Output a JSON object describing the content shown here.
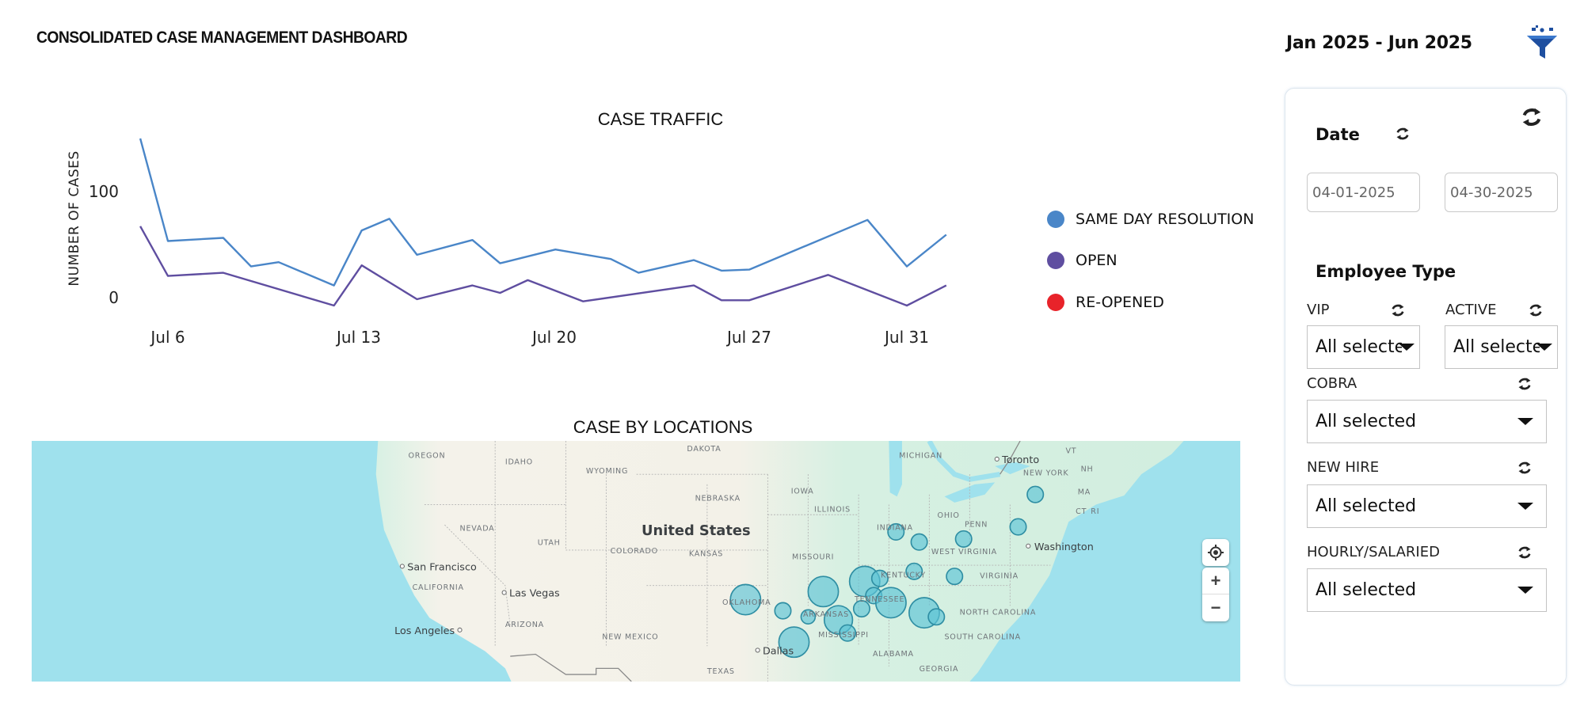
{
  "header": {
    "title": "CONSOLIDATED CASE MANAGEMENT DASHBOARD",
    "date_range": "Jan 2025 - Jun 2025",
    "filter_icon": "filter-funnel-icon"
  },
  "chart_data": {
    "type": "line",
    "title": "CASE TRAFFIC",
    "xlabel": "",
    "ylabel": "NUMBER OF CASES",
    "y_ticks": [
      "0",
      "100"
    ],
    "x_ticks": [
      "Jul 6",
      "Jul 13",
      "Jul 20",
      "Jul 27",
      "Jul 31"
    ],
    "grid": false,
    "legend_position": "right",
    "series": [
      {
        "name": "SAME DAY RESOLUTION",
        "color": "#4a86c8",
        "points": [
          {
            "x": "Jul 5",
            "y": 158
          },
          {
            "x": "Jul 6",
            "y": 61
          },
          {
            "x": "Jul 8",
            "y": 64
          },
          {
            "x": "Jul 9",
            "y": 37
          },
          {
            "x": "Jul 10",
            "y": 41
          },
          {
            "x": "Jul 12",
            "y": 19
          },
          {
            "x": "Jul 13",
            "y": 71
          },
          {
            "x": "Jul 14",
            "y": 82
          },
          {
            "x": "Jul 15",
            "y": 48
          },
          {
            "x": "Jul 17",
            "y": 62
          },
          {
            "x": "Jul 18",
            "y": 40
          },
          {
            "x": "Jul 20",
            "y": 53
          },
          {
            "x": "Jul 22",
            "y": 44
          },
          {
            "x": "Jul 23",
            "y": 31
          },
          {
            "x": "Jul 25",
            "y": 43
          },
          {
            "x": "Jul 26",
            "y": 33
          },
          {
            "x": "Jul 27",
            "y": 34
          },
          {
            "x": "Jul 30",
            "y": 81
          },
          {
            "x": "Jul 31",
            "y": 37
          },
          {
            "x": "Aug 1",
            "y": 67
          }
        ]
      },
      {
        "name": "OPEN",
        "color": "#5f4ea0",
        "points": [
          {
            "x": "Jul 5",
            "y": 75
          },
          {
            "x": "Jul 6",
            "y": 28
          },
          {
            "x": "Jul 8",
            "y": 31
          },
          {
            "x": "Jul 12",
            "y": 0
          },
          {
            "x": "Jul 13",
            "y": 38
          },
          {
            "x": "Jul 15",
            "y": 6
          },
          {
            "x": "Jul 17",
            "y": 19
          },
          {
            "x": "Jul 18",
            "y": 12
          },
          {
            "x": "Jul 19",
            "y": 24
          },
          {
            "x": "Jul 21",
            "y": 4
          },
          {
            "x": "Jul 25",
            "y": 19
          },
          {
            "x": "Jul 26",
            "y": 5
          },
          {
            "x": "Jul 27",
            "y": 5
          },
          {
            "x": "Jul 29",
            "y": 29
          },
          {
            "x": "Jul 31",
            "y": 0
          },
          {
            "x": "Aug 1",
            "y": 19
          }
        ]
      },
      {
        "name": "RE-OPENED",
        "color": "#e8232a",
        "points": []
      }
    ]
  },
  "map": {
    "title": "CASE BY LOCATIONS",
    "labels": [
      "OREGON",
      "IDAHO",
      "WYOMING",
      "DAKOTA",
      "NEBRASKA",
      "IOWA",
      "MICHIGAN",
      "NEW YORK",
      "NH",
      "MA",
      "CT",
      "RI",
      "NEVADA",
      "UTAH",
      "COLORADO",
      "KANSAS",
      "ILLINOIS",
      "OHIO",
      "PENN",
      "INDIANA",
      "MISSOURI",
      "CALIFORNIA",
      "WEST VIRGINIA",
      "KENTUCKY",
      "VIRGINIA",
      "OKLAHOMA",
      "TENNESSEE",
      "NORTH CAROLINA",
      "ARKANSAS",
      "ARIZONA",
      "NEW MEXICO",
      "SOUTH CAROLINA",
      "MISSISSIPPI",
      "ALABAMA",
      "GEORGIA",
      "TEXAS",
      "VT"
    ],
    "cities": [
      "Toronto",
      "San Francisco",
      "Las Vegas",
      "Washington",
      "Los Angeles",
      "Dallas"
    ],
    "country": "United States",
    "controls": {
      "locate_icon": "my-location-icon",
      "zoom_in": "+",
      "zoom_out": "−"
    }
  },
  "filters": {
    "reset_all_icon": "refresh-icon",
    "date": {
      "label": "Date",
      "start": "04-01-2025",
      "end": "04-30-2025"
    },
    "employee_type": {
      "label": "Employee Type"
    },
    "vip": {
      "label": "VIP",
      "value": "All selected"
    },
    "active": {
      "label": "ACTIVE",
      "value": "All selected"
    },
    "cobra": {
      "label": "COBRA",
      "value": "All selected"
    },
    "new_hire": {
      "label": "NEW HIRE",
      "value": "All selected"
    },
    "hourly_salaried": {
      "label": "HOURLY/SALARIED",
      "value": "All selected"
    }
  }
}
